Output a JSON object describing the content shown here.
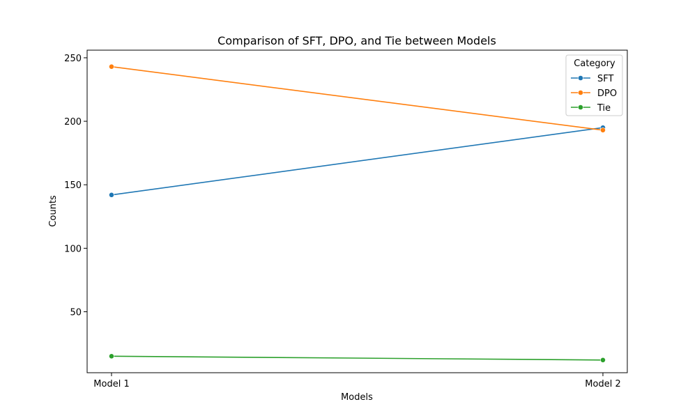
{
  "chart_data": {
    "type": "line",
    "title": "Comparison of SFT, DPO, and Tie between Models",
    "xlabel": "Models",
    "ylabel": "Counts",
    "categories": [
      "Model 1",
      "Model 2"
    ],
    "yticks": [
      50,
      100,
      150,
      200,
      250
    ],
    "ylim": [
      2,
      256
    ],
    "grid": false,
    "legend": {
      "title": "Category",
      "position": "top-right"
    },
    "series": [
      {
        "name": "SFT",
        "values": [
          142,
          195
        ],
        "color": "#1f77b4"
      },
      {
        "name": "DPO",
        "values": [
          243,
          193
        ],
        "color": "#ff7f0e"
      },
      {
        "name": "Tie",
        "values": [
          15,
          12
        ],
        "color": "#2ca02c"
      }
    ]
  }
}
